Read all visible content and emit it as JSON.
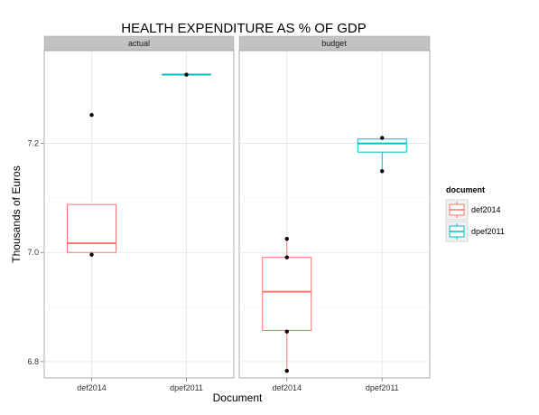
{
  "chart_data": {
    "type": "boxplot",
    "title": "HEALTH EXPENDITURE AS % OF GDP",
    "xlabel": "Document",
    "ylabel": "Thousands of Euros",
    "ylim": [
      6.77,
      7.37
    ],
    "yticks": [
      6.8,
      7.0,
      7.2
    ],
    "ytick_labels": [
      "6.8",
      "7.0",
      "7.2"
    ],
    "categories": [
      "def2014",
      "dpef2011"
    ],
    "facets": [
      "actual",
      "budget"
    ],
    "legend": {
      "title": "document",
      "position": "right",
      "entries": [
        {
          "label": "def2014",
          "color": "#F8766D"
        },
        {
          "label": "dpef2011",
          "color": "#00BFC4"
        }
      ]
    },
    "grid": true,
    "panels": [
      {
        "facet": "actual",
        "boxes": [
          {
            "category": "def2014",
            "color": "#F8766D",
            "whisker_low": 7.0,
            "q1": 7.0,
            "median": 7.017,
            "q3": 7.088,
            "whisker_high": 7.088
          },
          {
            "category": "dpef2011",
            "color": "#00BFC4",
            "whisker_low": 7.326,
            "q1": 7.326,
            "median": 7.326,
            "q3": 7.326,
            "whisker_high": 7.326
          }
        ],
        "points": [
          {
            "category": "def2014",
            "y": 7.252
          },
          {
            "category": "def2014",
            "y": 6.996
          },
          {
            "category": "dpef2011",
            "y": 7.326
          }
        ]
      },
      {
        "facet": "budget",
        "boxes": [
          {
            "category": "def2014",
            "color": "#F8766D",
            "whisker_low": 6.783,
            "q1": 6.857,
            "median": 6.928,
            "q3": 6.991,
            "whisker_high": 7.025
          },
          {
            "category": "dpef2011",
            "color": "#00BFC4",
            "whisker_low": 7.149,
            "q1": 7.184,
            "median": 7.2,
            "q3": 7.208,
            "whisker_high": 7.21
          }
        ],
        "points": [
          {
            "category": "def2014",
            "y": 7.025
          },
          {
            "category": "def2014",
            "y": 6.991
          },
          {
            "category": "def2014",
            "y": 6.855
          },
          {
            "category": "def2014",
            "y": 6.783
          },
          {
            "category": "dpef2011",
            "y": 7.21
          },
          {
            "category": "dpef2011",
            "y": 7.149
          }
        ]
      }
    ]
  }
}
